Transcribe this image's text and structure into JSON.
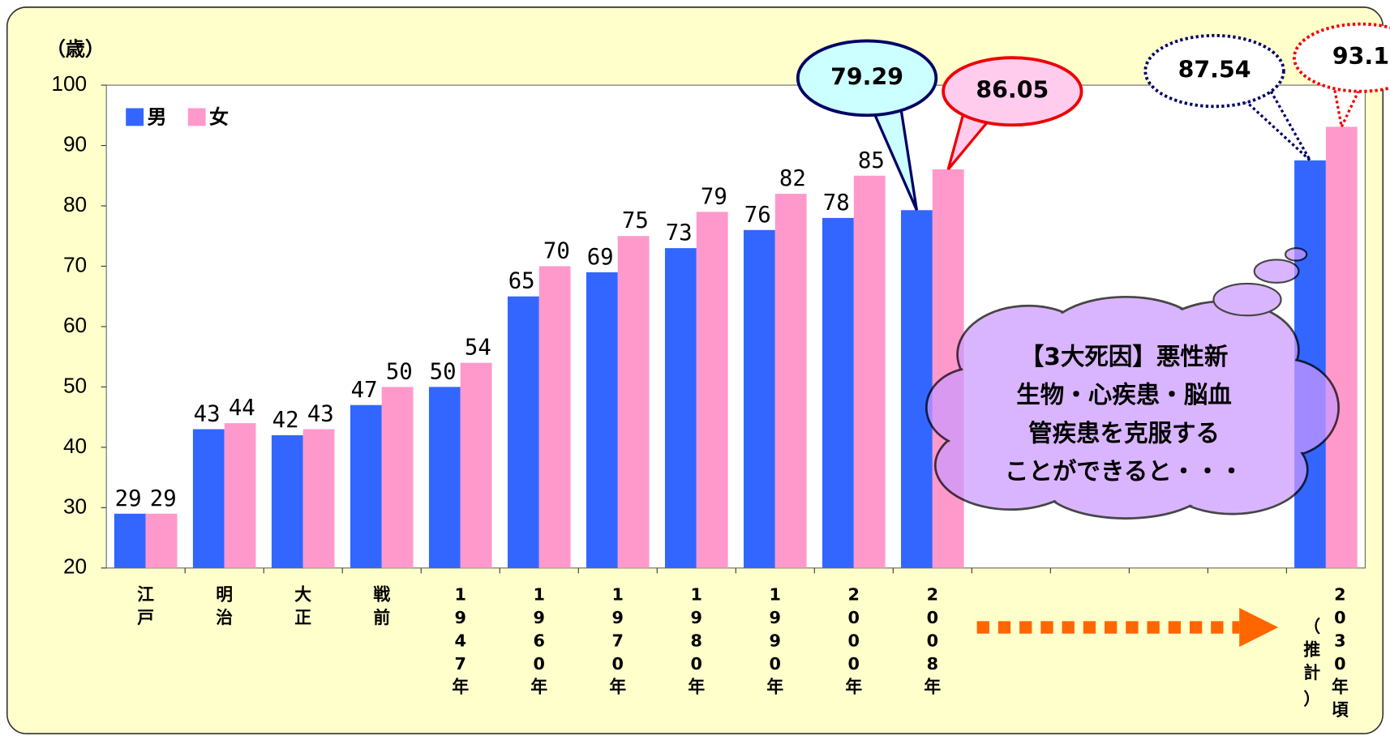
{
  "chart_data": {
    "type": "bar",
    "y_unit_label": "（歳）",
    "categories": [
      "江戸",
      "明治",
      "大正",
      "戦前",
      "1947年",
      "1960年",
      "1970年",
      "1980年",
      "1990年",
      "2000年",
      "2008年",
      null,
      null,
      null,
      null,
      "2030年頃"
    ],
    "category_note": "（推計）",
    "series": [
      {
        "name": "男",
        "color": "#3366ff",
        "values": [
          29,
          43,
          42,
          47,
          50,
          65,
          69,
          73,
          76,
          78,
          79.29,
          null,
          null,
          null,
          null,
          87.54
        ]
      },
      {
        "name": "女",
        "color": "#ff99cc",
        "values": [
          29,
          44,
          43,
          50,
          54,
          70,
          75,
          79,
          82,
          85,
          86.05,
          null,
          null,
          null,
          null,
          93.1
        ]
      }
    ],
    "ylim": [
      20,
      100
    ],
    "yticks": [
      20,
      30,
      40,
      50,
      60,
      70,
      80,
      90,
      100
    ],
    "grid": false,
    "legend": "top-left",
    "annotation_lines": [
      "【3大死因】悪性新",
      "生物・心疾患・脳血",
      "管疾患を克服する",
      "ことができると・・・"
    ]
  }
}
